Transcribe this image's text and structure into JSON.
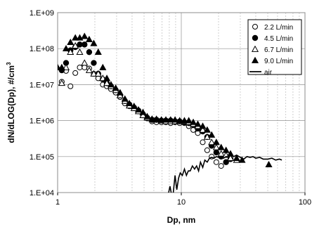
{
  "chart_data": {
    "type": "scatter",
    "title": "",
    "xlabel": "Dp, nm",
    "ylabel": "dN/dLOG(Dp), #/cm",
    "ylabel_superscript": "3",
    "x_scale": "log",
    "y_scale": "log",
    "xlim": [
      1,
      100
    ],
    "ylim": [
      10000,
      1000000000
    ],
    "x_ticks": [
      {
        "value": 1,
        "label": "1"
      },
      {
        "value": 10,
        "label": "10"
      },
      {
        "value": 100,
        "label": "100"
      }
    ],
    "y_ticks": [
      {
        "value": 10000,
        "label": "1.E+04"
      },
      {
        "value": 100000,
        "label": "1.E+05"
      },
      {
        "value": 1000000,
        "label": "1.E+06"
      },
      {
        "value": 10000000,
        "label": "1.E+07"
      },
      {
        "value": 100000000,
        "label": "1.E+08"
      },
      {
        "value": 1000000000,
        "label": "1.E+09"
      }
    ],
    "grid": true,
    "legend_position": "top-right",
    "series": [
      {
        "name": "2.2 L/min",
        "marker": "circle-open",
        "points": [
          [
            1.08,
            12000000
          ],
          [
            1.17,
            24000000
          ],
          [
            1.27,
            9000000
          ],
          [
            1.39,
            21000000
          ],
          [
            1.51,
            30000000
          ],
          [
            1.65,
            30000000
          ],
          [
            1.8,
            28000000
          ],
          [
            1.96,
            20000000
          ],
          [
            2.13,
            15000000
          ],
          [
            2.32,
            10000000
          ],
          [
            2.5,
            9000000
          ],
          [
            2.7,
            7500000
          ],
          [
            2.95,
            6000000
          ],
          [
            3.2,
            4500000
          ],
          [
            3.5,
            3000000
          ],
          [
            3.8,
            2500000
          ],
          [
            4.15,
            2200000
          ],
          [
            4.5,
            1800000
          ],
          [
            4.9,
            1400000
          ],
          [
            5.3,
            1150000
          ],
          [
            5.8,
            950000
          ],
          [
            6.3,
            900000
          ],
          [
            6.9,
            900000
          ],
          [
            7.5,
            900000
          ],
          [
            8.2,
            850000
          ],
          [
            8.9,
            900000
          ],
          [
            9.7,
            850000
          ],
          [
            10.6,
            850000
          ],
          [
            11.5,
            700000
          ],
          [
            12.5,
            550000
          ],
          [
            13.6,
            450000
          ],
          [
            14.9,
            250000
          ],
          [
            16.2,
            150000
          ],
          [
            17.6,
            100000
          ],
          [
            19.2,
            70000
          ],
          [
            21,
            55000
          ]
        ]
      },
      {
        "name": "4.5 L/min",
        "marker": "circle-filled",
        "points": [
          [
            1.08,
            25000000
          ],
          [
            1.17,
            40000000
          ],
          [
            1.27,
            90000000
          ],
          [
            1.39,
            110000000
          ],
          [
            1.51,
            130000000
          ],
          [
            1.65,
            130000000
          ],
          [
            1.8,
            80000000
          ],
          [
            1.96,
            40000000
          ],
          [
            2.13,
            20000000
          ],
          [
            2.32,
            14000000
          ],
          [
            2.5,
            11000000
          ],
          [
            2.7,
            9000000
          ],
          [
            2.95,
            7000000
          ],
          [
            3.2,
            5000000
          ],
          [
            3.5,
            3500000
          ],
          [
            3.8,
            2800000
          ],
          [
            4.15,
            2300000
          ],
          [
            4.5,
            1900000
          ],
          [
            4.9,
            1500000
          ],
          [
            5.3,
            1200000
          ],
          [
            5.8,
            1050000
          ],
          [
            6.3,
            1050000
          ],
          [
            6.9,
            1000000
          ],
          [
            7.5,
            1000000
          ],
          [
            8.2,
            1000000
          ],
          [
            8.9,
            950000
          ],
          [
            9.7,
            950000
          ],
          [
            10.6,
            900000
          ],
          [
            11.5,
            850000
          ],
          [
            12.5,
            750000
          ],
          [
            13.6,
            600000
          ],
          [
            14.9,
            500000
          ],
          [
            16.2,
            350000
          ],
          [
            17.6,
            200000
          ],
          [
            19.2,
            130000
          ],
          [
            21,
            100000
          ],
          [
            23,
            70000
          ],
          [
            25,
            85000
          ]
        ]
      },
      {
        "name": "6.7 L/min",
        "marker": "triangle-open",
        "points": [
          [
            1.08,
            11000000
          ],
          [
            1.17,
            30000000
          ],
          [
            1.27,
            80000000
          ],
          [
            1.39,
            120000000
          ],
          [
            1.51,
            80000000
          ],
          [
            1.65,
            40000000
          ],
          [
            1.8,
            25000000
          ],
          [
            1.96,
            20000000
          ],
          [
            2.13,
            20000000
          ],
          [
            2.32,
            15000000
          ],
          [
            2.5,
            11000000
          ],
          [
            2.7,
            9000000
          ],
          [
            2.95,
            7000000
          ],
          [
            3.2,
            5000000
          ],
          [
            3.5,
            3500000
          ],
          [
            3.8,
            2600000
          ],
          [
            4.15,
            2200000
          ],
          [
            4.5,
            1800000
          ],
          [
            4.9,
            1400000
          ],
          [
            5.3,
            1200000
          ],
          [
            5.8,
            1100000
          ],
          [
            6.3,
            1050000
          ],
          [
            6.9,
            1000000
          ],
          [
            7.5,
            950000
          ],
          [
            8.2,
            950000
          ],
          [
            8.9,
            950000
          ],
          [
            9.7,
            950000
          ],
          [
            10.6,
            950000
          ],
          [
            11.5,
            900000
          ],
          [
            12.5,
            800000
          ],
          [
            13.6,
            700000
          ],
          [
            14.9,
            550000
          ],
          [
            16.2,
            350000
          ],
          [
            17.6,
            250000
          ],
          [
            19.2,
            180000
          ],
          [
            21,
            120000
          ],
          [
            23,
            110000
          ],
          [
            25,
            90000
          ],
          [
            28,
            80000
          ]
        ]
      },
      {
        "name": "9.0 L/min",
        "marker": "triangle-filled",
        "points": [
          [
            1,
            30000000
          ],
          [
            1.08,
            30000000
          ],
          [
            1.17,
            100000000
          ],
          [
            1.27,
            150000000
          ],
          [
            1.39,
            200000000
          ],
          [
            1.51,
            200000000
          ],
          [
            1.65,
            220000000
          ],
          [
            1.8,
            180000000
          ],
          [
            1.96,
            140000000
          ],
          [
            2.13,
            80000000
          ],
          [
            2.32,
            30000000
          ],
          [
            2.5,
            15000000
          ],
          [
            2.7,
            10000000
          ],
          [
            2.95,
            8000000
          ],
          [
            3.2,
            6000000
          ],
          [
            3.5,
            4000000
          ],
          [
            3.8,
            3000000
          ],
          [
            4.15,
            2500000
          ],
          [
            4.5,
            2000000
          ],
          [
            4.9,
            1700000
          ],
          [
            5.3,
            1300000
          ],
          [
            5.8,
            1100000
          ],
          [
            6.3,
            1100000
          ],
          [
            6.9,
            1050000
          ],
          [
            7.5,
            1050000
          ],
          [
            8.2,
            1050000
          ],
          [
            8.9,
            1050000
          ],
          [
            9.7,
            1000000
          ],
          [
            10.6,
            1000000
          ],
          [
            11.5,
            1000000
          ],
          [
            12.5,
            900000
          ],
          [
            13.6,
            800000
          ],
          [
            14.9,
            700000
          ],
          [
            16.2,
            550000
          ],
          [
            17.6,
            400000
          ],
          [
            19.2,
            250000
          ],
          [
            21,
            180000
          ],
          [
            23,
            150000
          ],
          [
            25,
            120000
          ],
          [
            28,
            90000
          ],
          [
            31,
            80000
          ],
          [
            51,
            60000
          ]
        ]
      },
      {
        "name": "air",
        "marker": "line",
        "points": [
          [
            7.9,
            10000
          ],
          [
            8.1,
            15000
          ],
          [
            8.3,
            9500
          ],
          [
            8.6,
            9500
          ],
          [
            8.9,
            30000
          ],
          [
            9.2,
            12000
          ],
          [
            9.5,
            25000
          ],
          [
            9.8,
            35000
          ],
          [
            10.2,
            30000
          ],
          [
            10.6,
            45000
          ],
          [
            11,
            30000
          ],
          [
            11.4,
            40000
          ],
          [
            11.8,
            40000
          ],
          [
            12.3,
            55000
          ],
          [
            12.8,
            45000
          ],
          [
            13.3,
            55000
          ],
          [
            13.8,
            40000
          ],
          [
            14.3,
            70000
          ],
          [
            14.9,
            50000
          ],
          [
            15.5,
            80000
          ],
          [
            16.2,
            70000
          ],
          [
            16.9,
            90000
          ],
          [
            17.6,
            95000
          ],
          [
            18.4,
            90000
          ],
          [
            19.2,
            100000
          ],
          [
            20,
            95000
          ],
          [
            21,
            100000
          ],
          [
            22,
            90000
          ],
          [
            23,
            100000
          ],
          [
            24,
            95000
          ],
          [
            25,
            110000
          ],
          [
            26.5,
            100000
          ],
          [
            28,
            110000
          ],
          [
            30,
            95000
          ],
          [
            32,
            85000
          ],
          [
            34,
            100000
          ],
          [
            36,
            95000
          ],
          [
            38,
            100000
          ],
          [
            40,
            90000
          ],
          [
            43,
            95000
          ],
          [
            46,
            85000
          ],
          [
            50,
            85000
          ],
          [
            54,
            90000
          ],
          [
            58,
            80000
          ],
          [
            62,
            85000
          ],
          [
            65,
            80000
          ]
        ]
      }
    ]
  }
}
